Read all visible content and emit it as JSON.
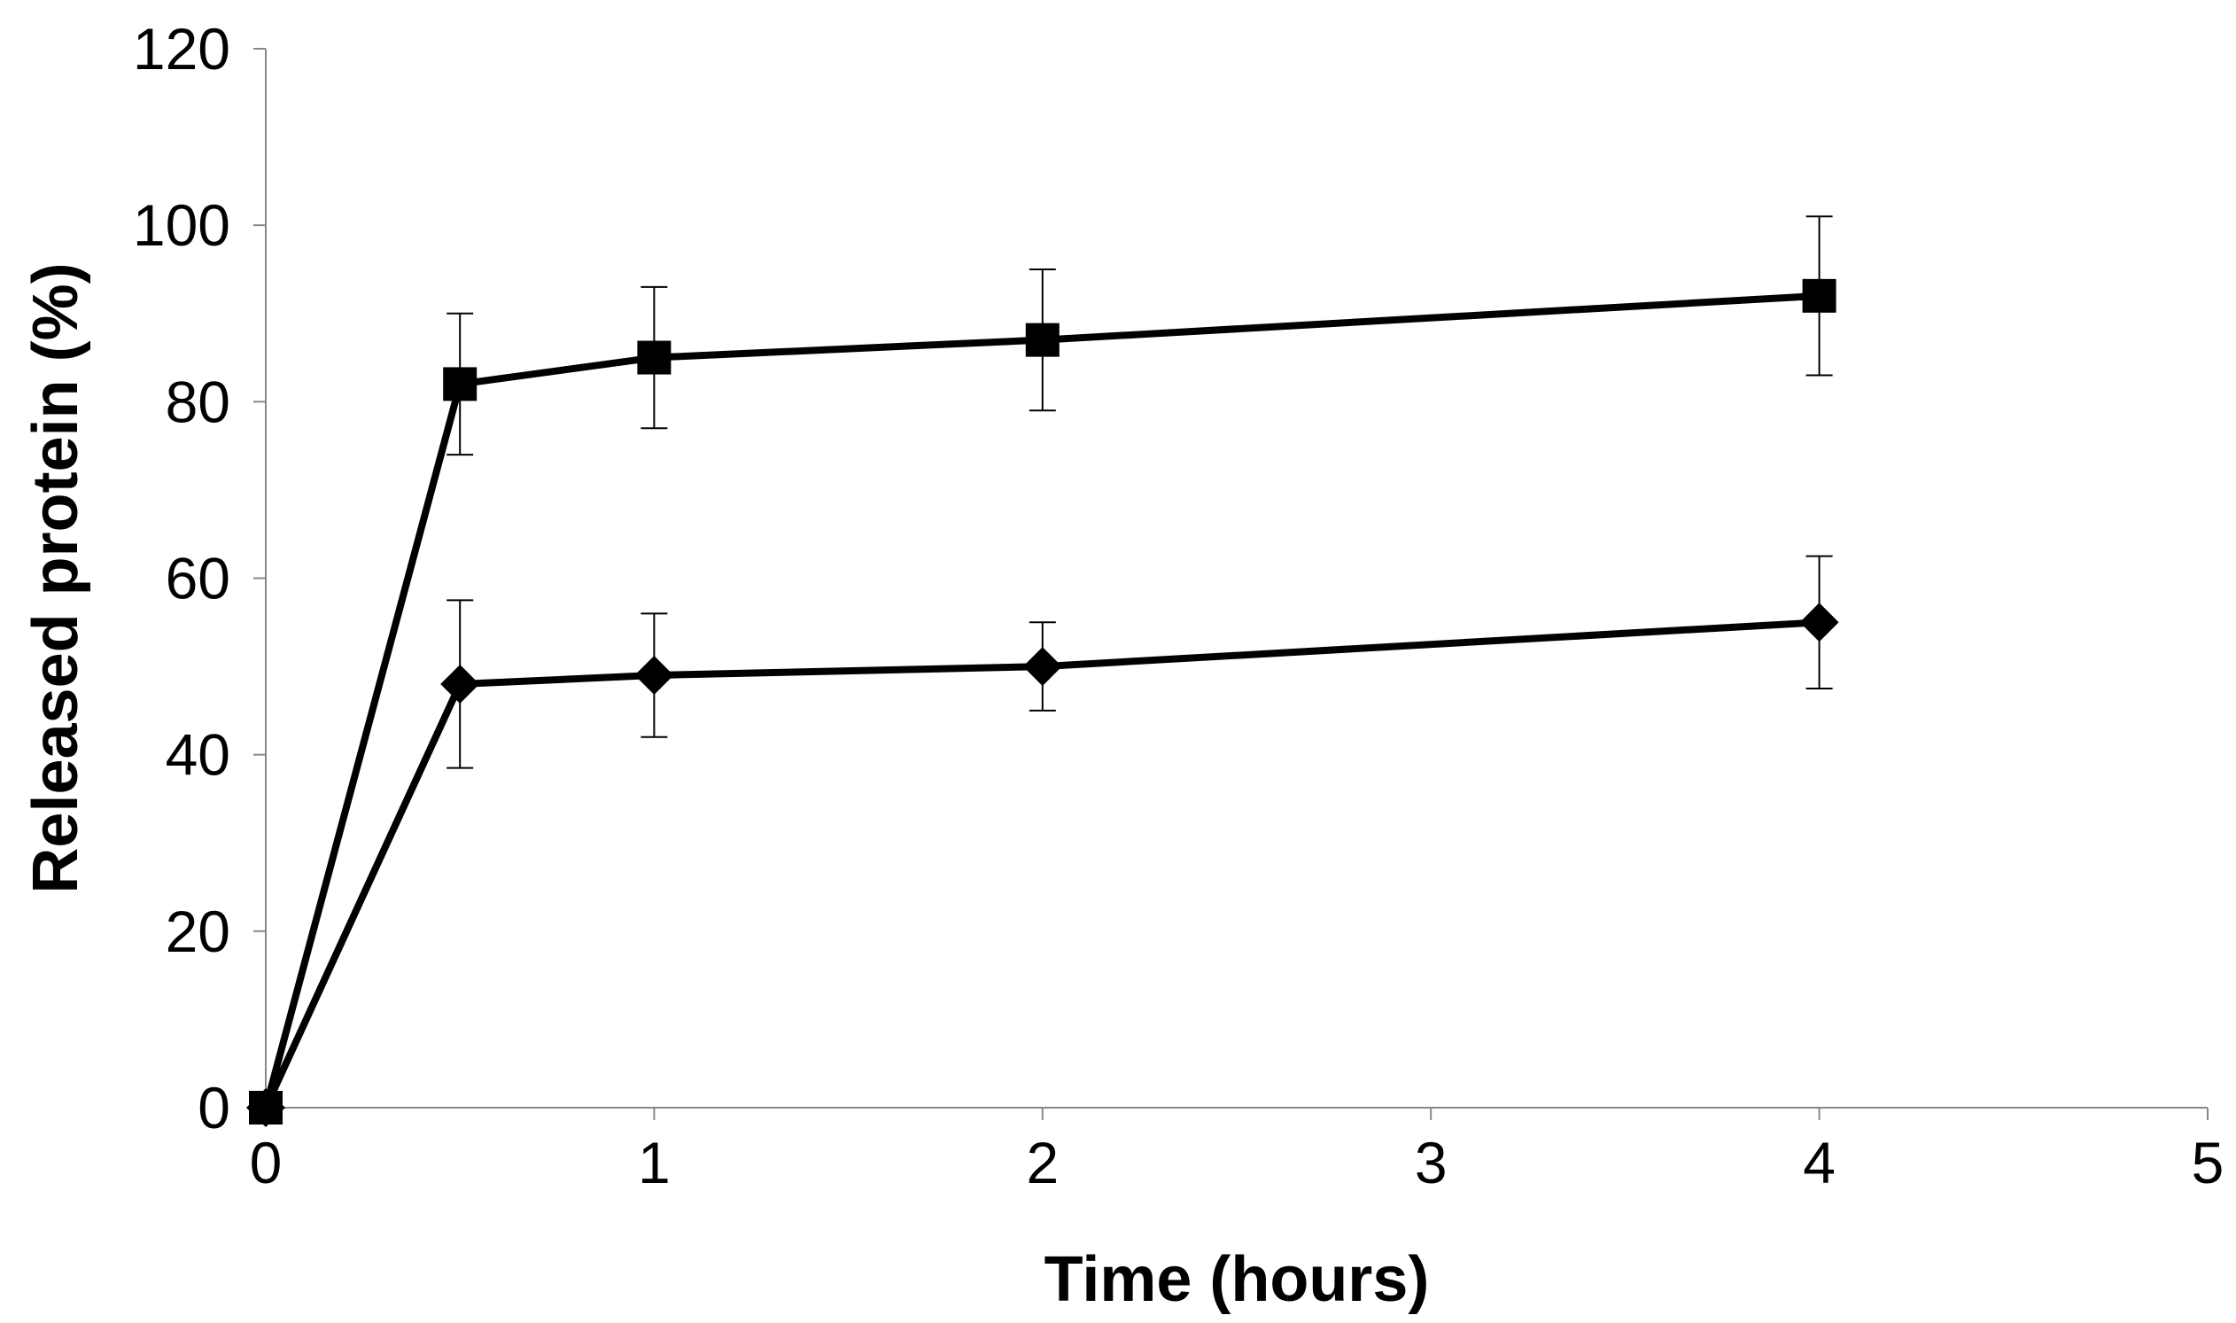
{
  "chart_data": {
    "type": "line",
    "title": "",
    "xlabel": "Time (hours)",
    "ylabel": "Released protein (%)",
    "xlim": [
      0,
      5
    ],
    "ylim": [
      0,
      120
    ],
    "x_ticks": [
      0,
      1,
      2,
      3,
      4,
      5
    ],
    "y_ticks": [
      0,
      20,
      40,
      60,
      80,
      100,
      120
    ],
    "grid": false,
    "legend": "none",
    "series": [
      {
        "marker": "square",
        "color": "#000000",
        "points": [
          {
            "x": 0,
            "y": 0,
            "err": 0
          },
          {
            "x": 0.5,
            "y": 82,
            "err": 8
          },
          {
            "x": 1,
            "y": 85,
            "err": 8
          },
          {
            "x": 2,
            "y": 87,
            "err": 8
          },
          {
            "x": 4,
            "y": 92,
            "err": 9
          }
        ]
      },
      {
        "marker": "diamond",
        "color": "#000000",
        "points": [
          {
            "x": 0,
            "y": 0,
            "err": 0
          },
          {
            "x": 0.5,
            "y": 48,
            "err": 9.5
          },
          {
            "x": 1,
            "y": 49,
            "err": 7
          },
          {
            "x": 2,
            "y": 50,
            "err": 5
          },
          {
            "x": 4,
            "y": 55,
            "err": 7.5
          }
        ]
      }
    ]
  }
}
